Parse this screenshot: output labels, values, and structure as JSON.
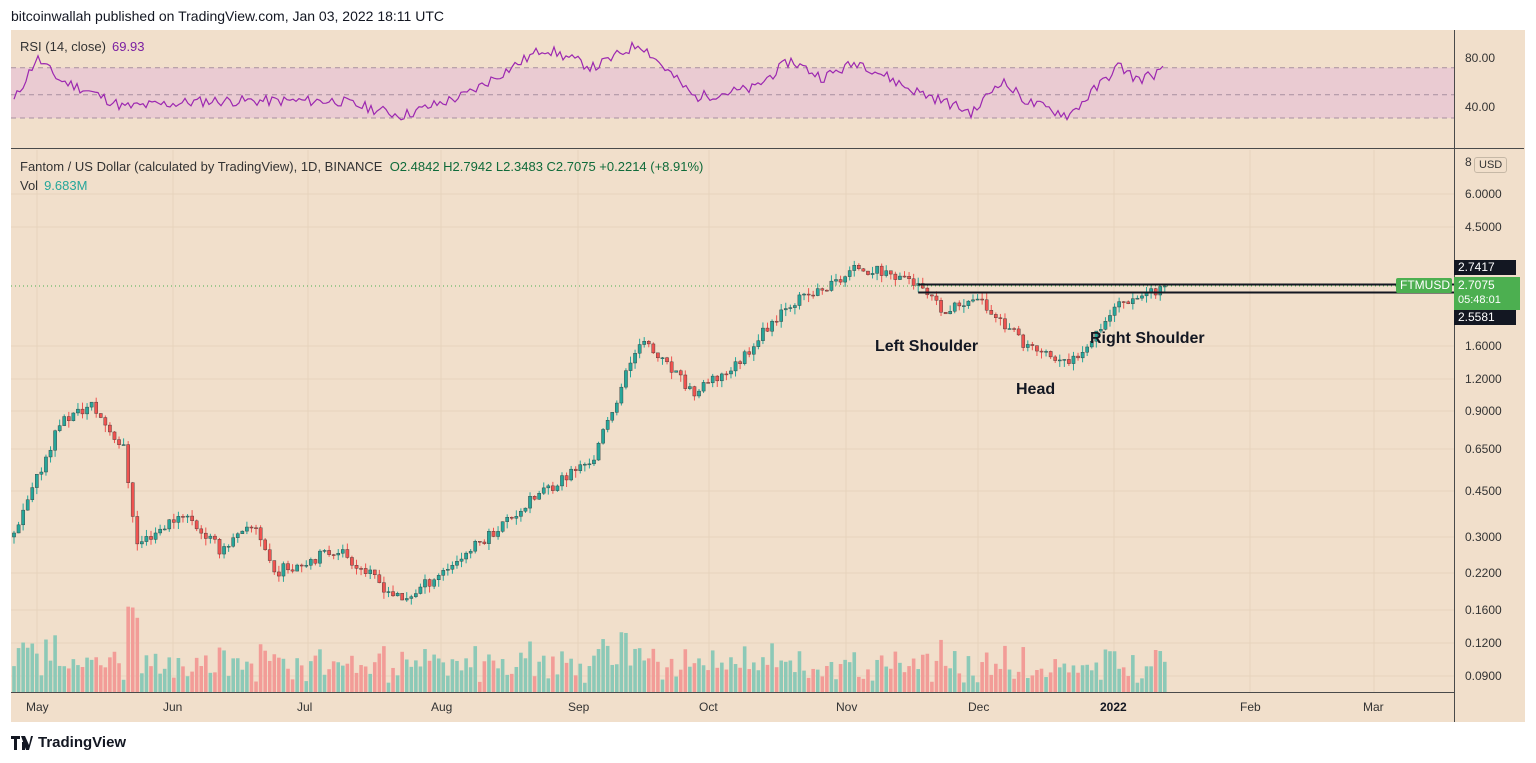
{
  "header": {
    "published_line": "bitcoinwallah published on TradingView.com, Jan 03, 2022 18:11 UTC"
  },
  "rsi": {
    "label": "RSI (14, close)",
    "value": "69.93",
    "levels": [
      "80.00",
      "40.00"
    ],
    "color": "#9c27b0"
  },
  "main": {
    "legend_symbol": "Fantom / US Dollar (calculated by TradingView), 1D, BINANCE",
    "legend_ohlc": "O2.4842  H2.7942  L2.3483  C2.7075  +0.2214 (+8.91%)",
    "vol_label": "Vol",
    "vol_value": "9.683M",
    "currency_button": "USD",
    "price_labels": [
      "8",
      "6.0000",
      "4.5000",
      "1.6000",
      "1.2000",
      "0.9000",
      "0.6500",
      "0.4500",
      "0.3000",
      "0.2200",
      "0.1600",
      "0.1200",
      "0.0900"
    ],
    "upper_line_label": "2.7417",
    "current_price": "2.7075",
    "countdown": "05:48:01",
    "lower_line_label": "2.5581",
    "symbol_tag": "FTMUSD",
    "time_labels": [
      "May",
      "Jun",
      "Jul",
      "Aug",
      "Sep",
      "Oct",
      "Nov",
      "Dec",
      "2022",
      "Feb",
      "Mar"
    ],
    "annotations": {
      "left": "Left Shoulder",
      "head": "Head",
      "right": "Right Shoulder"
    }
  },
  "colors": {
    "up": "#26a69a",
    "down": "#ef5350",
    "background": "#f1dfcb",
    "rsi_band": "#e8c6d3",
    "price_tag": "#4caf50"
  },
  "footer": {
    "brand": "TradingView"
  },
  "chart_data": {
    "type": "candlestick",
    "title": "Fantom / US Dollar (calculated by TradingView), 1D, BINANCE",
    "scale": "log",
    "x_range": [
      "2021-04-26",
      "2022-01-03"
    ],
    "ylim": [
      0.08,
      8
    ],
    "resistance_levels": [
      2.7417,
      2.5581
    ],
    "pattern": [
      "Left Shoulder",
      "Head",
      "Right Shoulder"
    ],
    "close_path": [
      {
        "date": "2021-04-26",
        "close": 0.3
      },
      {
        "date": "2021-05-06",
        "close": 0.82
      },
      {
        "date": "2021-05-13",
        "close": 0.95
      },
      {
        "date": "2021-05-20",
        "close": 0.65
      },
      {
        "date": "2021-05-23",
        "close": 0.28
      },
      {
        "date": "2021-06-02",
        "close": 0.37
      },
      {
        "date": "2021-06-10",
        "close": 0.27
      },
      {
        "date": "2021-06-18",
        "close": 0.33
      },
      {
        "date": "2021-06-22",
        "close": 0.22
      },
      {
        "date": "2021-07-06",
        "close": 0.27
      },
      {
        "date": "2021-07-20",
        "close": 0.17
      },
      {
        "date": "2021-08-03",
        "close": 0.26
      },
      {
        "date": "2021-08-20",
        "close": 0.45
      },
      {
        "date": "2021-08-31",
        "close": 0.6
      },
      {
        "date": "2021-09-10",
        "close": 1.7
      },
      {
        "date": "2021-09-22",
        "close": 1.05
      },
      {
        "date": "2021-10-01",
        "close": 1.35
      },
      {
        "date": "2021-10-12",
        "close": 2.3
      },
      {
        "date": "2021-10-20",
        "close": 2.6
      },
      {
        "date": "2021-10-28",
        "close": 3.2
      },
      {
        "date": "2021-11-08",
        "close": 2.9
      },
      {
        "date": "2021-11-16",
        "close": 2.1
      },
      {
        "date": "2021-11-22",
        "close": 2.5
      },
      {
        "date": "2021-12-04",
        "close": 1.6
      },
      {
        "date": "2021-12-13",
        "close": 1.35
      },
      {
        "date": "2021-12-24",
        "close": 2.35
      },
      {
        "date": "2022-01-03",
        "close": 2.7075
      }
    ],
    "rsi_series": [
      {
        "date": "2021-04-26",
        "value": 45
      },
      {
        "date": "2021-05-01",
        "value": 80
      },
      {
        "date": "2021-05-06",
        "value": 62
      },
      {
        "date": "2021-05-13",
        "value": 52
      },
      {
        "date": "2021-05-20",
        "value": 40
      },
      {
        "date": "2021-06-08",
        "value": 45
      },
      {
        "date": "2021-07-06",
        "value": 45
      },
      {
        "date": "2021-07-20",
        "value": 33
      },
      {
        "date": "2021-08-03",
        "value": 50
      },
      {
        "date": "2021-08-20",
        "value": 88
      },
      {
        "date": "2021-08-31",
        "value": 72
      },
      {
        "date": "2021-09-10",
        "value": 92
      },
      {
        "date": "2021-09-22",
        "value": 48
      },
      {
        "date": "2021-10-05",
        "value": 55
      },
      {
        "date": "2021-10-13",
        "value": 78
      },
      {
        "date": "2021-10-20",
        "value": 64
      },
      {
        "date": "2021-10-28",
        "value": 77
      },
      {
        "date": "2021-11-08",
        "value": 55
      },
      {
        "date": "2021-11-16",
        "value": 44
      },
      {
        "date": "2021-11-22",
        "value": 35
      },
      {
        "date": "2021-11-28",
        "value": 62
      },
      {
        "date": "2021-12-04",
        "value": 44
      },
      {
        "date": "2021-12-13",
        "value": 33
      },
      {
        "date": "2021-12-24",
        "value": 74
      },
      {
        "date": "2021-12-28",
        "value": 62
      },
      {
        "date": "2022-01-03",
        "value": 69.93
      }
    ]
  }
}
